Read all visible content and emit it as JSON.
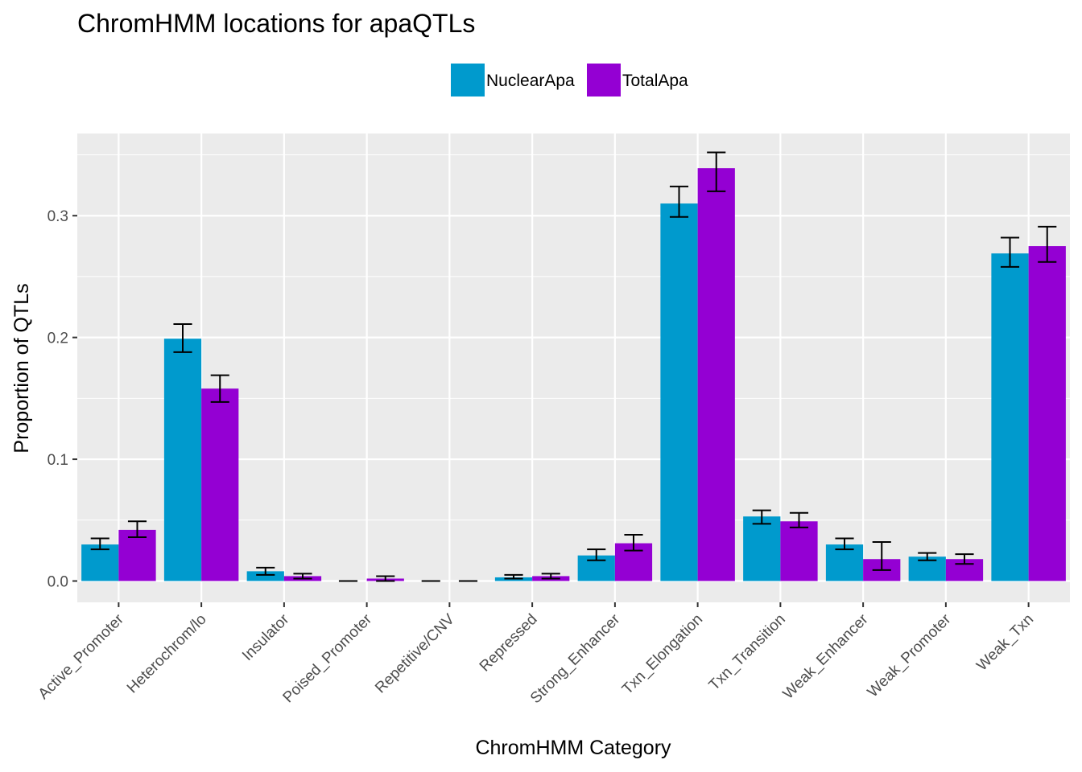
{
  "chart_data": {
    "type": "bar",
    "title": "ChromHMM locations for apaQTLs",
    "xlabel": "ChromHMM Category",
    "ylabel": "Proportion of QTLs",
    "ylim": [
      -0.0175,
      0.3675
    ],
    "yticks": [
      0.0,
      0.1,
      0.2,
      0.3
    ],
    "ytick_labels": [
      "0.0",
      "0.1",
      "0.2",
      "0.3"
    ],
    "grid": true,
    "legend_position": "top",
    "categories": [
      "Active_Promoter",
      "Heterochrom/lo",
      "Insulator",
      "Poised_Promoter",
      "Repetitive/CNV",
      "Repressed",
      "Strong_Enhancer",
      "Txn_Elongation",
      "Txn_Transition",
      "Weak_Enhancer",
      "Weak_Promoter",
      "Weak_Txn"
    ],
    "series": [
      {
        "name": "NuclearApa",
        "color": "#009ACD",
        "values": [
          0.03,
          0.199,
          0.008,
          0.0,
          0.0,
          0.003,
          0.021,
          0.31,
          0.053,
          0.03,
          0.02,
          0.269
        ],
        "err_low": [
          0.026,
          0.188,
          0.005,
          0.0,
          0.0,
          0.002,
          0.017,
          0.299,
          0.047,
          0.026,
          0.017,
          0.258
        ],
        "err_high": [
          0.035,
          0.211,
          0.011,
          0.0,
          0.0,
          0.005,
          0.026,
          0.324,
          0.058,
          0.035,
          0.023,
          0.282
        ]
      },
      {
        "name": "TotalApa",
        "color": "#9400D3",
        "values": [
          0.042,
          0.158,
          0.004,
          0.002,
          0.0,
          0.004,
          0.031,
          0.339,
          0.049,
          0.018,
          0.018,
          0.275
        ],
        "err_low": [
          0.036,
          0.147,
          0.002,
          0.0,
          0.0,
          0.002,
          0.025,
          0.32,
          0.044,
          0.009,
          0.014,
          0.262
        ],
        "err_high": [
          0.049,
          0.169,
          0.006,
          0.004,
          0.0,
          0.006,
          0.038,
          0.352,
          0.056,
          0.032,
          0.022,
          0.291
        ]
      }
    ]
  }
}
